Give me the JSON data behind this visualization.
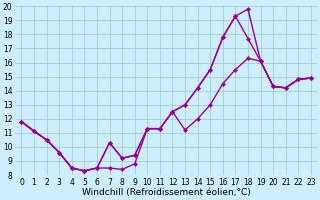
{
  "bg_color": "#cceeff",
  "line_color": "#990099",
  "markersize": 2.5,
  "linewidth": 1.0,
  "xlabel": "Windchill (Refroidissement éolien,°C)",
  "xlabel_fontsize": 6.5,
  "tick_fontsize": 5.5,
  "xlim": [
    -0.5,
    23.5
  ],
  "ylim": [
    8,
    20
  ],
  "xticks": [
    0,
    1,
    2,
    3,
    4,
    5,
    6,
    7,
    8,
    9,
    10,
    11,
    12,
    13,
    14,
    15,
    16,
    17,
    18,
    19,
    20,
    21,
    22,
    23
  ],
  "yticks": [
    8,
    9,
    10,
    11,
    12,
    13,
    14,
    15,
    16,
    17,
    18,
    19,
    20
  ],
  "grid_color": "#99ccbb",
  "series1_x": [
    0,
    1,
    2,
    3,
    4,
    5,
    6,
    7,
    8,
    9,
    10,
    11,
    12,
    13,
    14,
    15,
    16,
    17,
    18,
    19,
    20,
    21,
    22,
    23
  ],
  "series1_y": [
    11.8,
    11.1,
    10.5,
    9.6,
    8.5,
    8.3,
    8.5,
    8.5,
    8.4,
    8.8,
    11.3,
    11.3,
    12.5,
    11.2,
    12.0,
    13.0,
    14.5,
    15.5,
    16.3,
    16.1,
    14.3,
    14.2,
    14.8,
    14.9
  ],
  "series2_x": [
    0,
    2,
    3,
    4,
    5,
    6,
    7,
    8,
    9,
    10,
    11,
    12,
    13,
    14,
    15,
    16,
    17,
    18,
    19,
    20,
    21,
    22,
    23
  ],
  "series2_y": [
    11.8,
    10.5,
    9.6,
    8.5,
    8.3,
    8.5,
    10.3,
    9.2,
    9.4,
    11.3,
    11.3,
    12.5,
    13.0,
    14.2,
    15.5,
    17.8,
    19.3,
    17.7,
    16.1,
    14.3,
    14.2,
    14.8,
    14.9
  ],
  "series3_x": [
    0,
    1,
    2,
    3,
    4,
    5,
    6,
    7,
    8,
    9,
    10,
    11,
    12,
    13,
    14,
    15,
    16,
    17,
    18,
    19,
    20,
    21,
    22,
    23
  ],
  "series3_y": [
    11.8,
    11.1,
    10.5,
    9.6,
    8.5,
    8.3,
    8.5,
    10.3,
    9.2,
    9.4,
    11.3,
    11.3,
    12.5,
    13.0,
    14.2,
    15.5,
    17.8,
    19.3,
    19.8,
    16.1,
    14.3,
    14.2,
    14.8,
    14.9
  ]
}
